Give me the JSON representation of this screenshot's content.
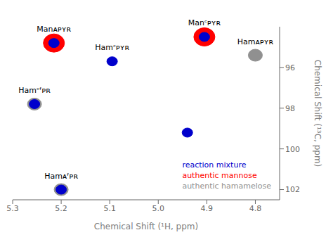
{
  "chart_data": {
    "type": "scatter",
    "xlabel": "Chemical Shift (¹H, ppm)",
    "ylabel": "Chemical Shift (¹³C, ppm)",
    "xlim": [
      5.3,
      4.75
    ],
    "ylim": [
      102.5,
      94.0
    ],
    "xticks": [
      5.3,
      5.2,
      5.1,
      {
        "value": 5.0,
        "label": "5.0"
      },
      4.9,
      4.8
    ],
    "yticks": [
      96,
      98,
      100,
      102
    ],
    "grid": false,
    "legend": "lower right",
    "series": [
      {
        "name": "reaction mixture",
        "color": "#0000cc",
        "x": [
          5.215,
          4.905,
          5.095,
          5.255,
          4.94,
          5.2
        ],
        "values": [
          94.8,
          94.5,
          95.7,
          97.8,
          99.2,
          102.0
        ]
      },
      {
        "name": "authentic mannose",
        "color": "#ff0000",
        "x": [
          5.215,
          4.905
        ],
        "values": [
          94.8,
          94.5
        ]
      },
      {
        "name": "authentic hamamelose",
        "color": "#909090",
        "x": [
          4.8,
          5.255,
          5.2
        ],
        "values": [
          95.4,
          97.8,
          102.0
        ]
      }
    ],
    "annotations": [
      {
        "text": "Manᴀᴘʏʀ",
        "x": 5.215,
        "y": 94.8
      },
      {
        "text": "Manᶜᴘʏʀ",
        "x": 4.905,
        "y": 94.5
      },
      {
        "text": "Hamᶜᴘʏʀ",
        "x": 5.095,
        "y": 95.7
      },
      {
        "text": "Hamᴀᴘʏʀ",
        "x": 4.8,
        "y": 95.4
      },
      {
        "text": "Hamᶜᶠᴘʀ",
        "x": 5.255,
        "y": 97.8
      },
      {
        "text": "Hamᴀᶠᴘʀ",
        "x": 5.2,
        "y": 102.0
      }
    ]
  }
}
